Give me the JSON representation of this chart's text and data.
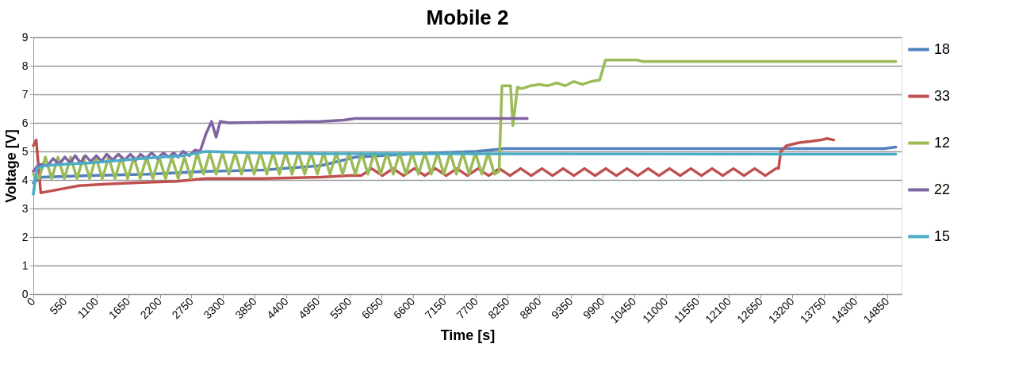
{
  "chart_data": {
    "type": "line",
    "title": "Mobile 2",
    "xlabel": "Time [s]",
    "ylabel": "Voltage [V]",
    "xlim": [
      0,
      15100
    ],
    "xticks": [
      0,
      550,
      1100,
      1650,
      2200,
      2750,
      3300,
      3850,
      4400,
      4950,
      5500,
      6050,
      6600,
      7150,
      7700,
      8250,
      8800,
      9350,
      9900,
      10450,
      11000,
      11550,
      12100,
      12650,
      13200,
      13750,
      14300,
      14850
    ],
    "ylim": [
      0,
      9
    ],
    "yticks": [
      0,
      1,
      2,
      3,
      4,
      5,
      6,
      7,
      8,
      9
    ],
    "grid": "y",
    "legend": "right",
    "line_style": "solid",
    "marker": "none",
    "series": [
      {
        "name": "18",
        "color": "#4f81bd",
        "x": [
          0,
          150,
          1000,
          2000,
          3000,
          4000,
          5000,
          5600,
          6500,
          7700,
          8200,
          14800,
          15000
        ],
        "values": [
          3.9,
          4.1,
          4.15,
          4.2,
          4.3,
          4.35,
          4.5,
          4.8,
          4.9,
          5.0,
          5.1,
          5.1,
          5.15
        ]
      },
      {
        "name": "33",
        "color": "#c0504d",
        "x": [
          0,
          50,
          130,
          400,
          800,
          1200,
          1800,
          2500,
          3000,
          4000,
          5000,
          5500,
          5700,
          5885,
          6070,
          6255,
          6440,
          6625,
          6810,
          6995,
          7180,
          7365,
          7550,
          7735,
          7920,
          8105,
          8290,
          8475,
          8660,
          8845,
          9030,
          9215,
          9400,
          9585,
          9770,
          9955,
          10140,
          10325,
          10510,
          10695,
          10880,
          11065,
          11250,
          11435,
          11620,
          11805,
          11990,
          12175,
          12360,
          12545,
          12730,
          12915,
          12960,
          13000,
          13100,
          13300,
          13500,
          13700,
          13800,
          13920
        ],
        "values": [
          5.2,
          5.4,
          3.55,
          3.65,
          3.8,
          3.85,
          3.9,
          3.95,
          4.05,
          4.05,
          4.1,
          4.15,
          4.15,
          4.4,
          4.15,
          4.4,
          4.15,
          4.4,
          4.15,
          4.4,
          4.15,
          4.4,
          4.15,
          4.4,
          4.15,
          4.4,
          4.15,
          4.4,
          4.15,
          4.4,
          4.15,
          4.4,
          4.15,
          4.4,
          4.15,
          4.4,
          4.15,
          4.4,
          4.15,
          4.4,
          4.15,
          4.4,
          4.15,
          4.4,
          4.15,
          4.4,
          4.15,
          4.4,
          4.15,
          4.4,
          4.15,
          4.4,
          4.4,
          5.0,
          5.2,
          5.3,
          5.35,
          5.4,
          5.45,
          5.4
        ]
      },
      {
        "name": "12",
        "color": "#9bbb59",
        "x": [
          0,
          100,
          210,
          320,
          430,
          540,
          650,
          760,
          870,
          980,
          1090,
          1200,
          1310,
          1420,
          1530,
          1640,
          1750,
          1860,
          1970,
          2080,
          2190,
          2300,
          2410,
          2520,
          2630,
          2740,
          2850,
          2960,
          3070,
          3180,
          3290,
          3400,
          3510,
          3620,
          3730,
          3840,
          3950,
          4060,
          4170,
          4280,
          4390,
          4500,
          4610,
          4720,
          4830,
          4940,
          5050,
          5160,
          5270,
          5380,
          5490,
          5600,
          5710,
          5820,
          5930,
          6040,
          6150,
          6260,
          6370,
          6480,
          6590,
          6700,
          6810,
          6920,
          7030,
          7140,
          7250,
          7360,
          7470,
          7580,
          7690,
          7800,
          7910,
          8020,
          8100,
          8150,
          8300,
          8340,
          8420,
          8500,
          8650,
          8800,
          8950,
          9100,
          9250,
          9400,
          9550,
          9700,
          9850,
          9950,
          10500,
          10600,
          15000
        ],
        "values": [
          4.2,
          4.05,
          4.8,
          4.05,
          4.8,
          4.05,
          4.8,
          4.05,
          4.8,
          4.05,
          4.8,
          4.05,
          4.8,
          4.05,
          4.8,
          4.05,
          4.8,
          4.05,
          4.8,
          4.05,
          4.8,
          4.05,
          4.8,
          4.05,
          4.8,
          4.05,
          4.95,
          4.2,
          4.95,
          4.2,
          4.95,
          4.2,
          4.95,
          4.2,
          4.95,
          4.2,
          4.95,
          4.2,
          4.95,
          4.2,
          4.95,
          4.2,
          4.95,
          4.2,
          4.95,
          4.2,
          4.95,
          4.2,
          4.95,
          4.2,
          4.95,
          4.2,
          4.95,
          4.2,
          4.95,
          4.2,
          4.95,
          4.2,
          4.95,
          4.2,
          4.95,
          4.2,
          4.95,
          4.2,
          4.95,
          4.2,
          4.95,
          4.2,
          4.95,
          4.2,
          4.95,
          4.2,
          4.95,
          4.2,
          4.3,
          7.3,
          7.3,
          5.9,
          7.25,
          7.2,
          7.3,
          7.35,
          7.3,
          7.4,
          7.3,
          7.45,
          7.35,
          7.45,
          7.5,
          8.2,
          8.2,
          8.15,
          8.15
        ]
      },
      {
        "name": "22",
        "color": "#8064a2",
        "x": [
          0,
          100,
          250,
          343,
          450,
          549,
          640,
          727,
          820,
          905,
          1000,
          1097,
          1190,
          1276,
          1380,
          1481,
          1590,
          1687,
          1780,
          1866,
          1960,
          2058,
          2160,
          2263,
          2350,
          2442,
          2520,
          2606,
          2710,
          2812,
          2900,
          3000,
          3100,
          3180,
          3250,
          3400,
          5000,
          5400,
          5600,
          8590
        ],
        "values": [
          4.3,
          4.55,
          4.5,
          4.75,
          4.55,
          4.8,
          4.6,
          4.85,
          4.6,
          4.85,
          4.65,
          4.85,
          4.65,
          4.9,
          4.7,
          4.9,
          4.7,
          4.9,
          4.7,
          4.9,
          4.75,
          4.95,
          4.75,
          4.95,
          4.8,
          4.95,
          4.8,
          5.0,
          4.85,
          5.05,
          5.0,
          5.6,
          6.05,
          5.5,
          6.05,
          6.0,
          6.05,
          6.1,
          6.15,
          6.15
        ]
      },
      {
        "name": "15",
        "color": "#4bacc6",
        "x": [
          0,
          60,
          200,
          500,
          1000,
          1600,
          2200,
          2600,
          3000,
          3800,
          5000,
          15000
        ],
        "values": [
          3.5,
          4.4,
          4.5,
          4.55,
          4.6,
          4.7,
          4.8,
          4.85,
          5.0,
          4.95,
          4.92,
          4.9
        ]
      }
    ]
  }
}
